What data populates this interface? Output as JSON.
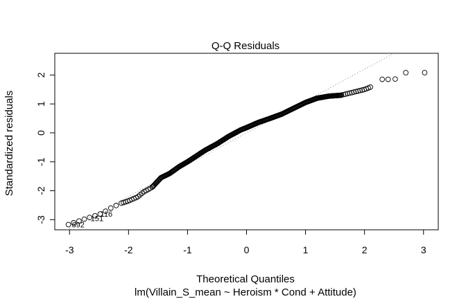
{
  "chart_data": {
    "type": "scatter",
    "title": "Q-Q Residuals",
    "xlabel": "Theoretical Quantiles",
    "ylabel": "Standardized residuals",
    "subtitle": "lm(Villain_S_mean ~ Heroism * Cond + Attitude)",
    "xlim": [
      -3.25,
      3.25
    ],
    "ylim": [
      -3.35,
      2.75
    ],
    "x_ticks": [
      -3,
      -2,
      -1,
      0,
      1,
      2,
      3
    ],
    "y_ticks": [
      -3,
      -2,
      -1,
      0,
      1,
      2
    ],
    "x_tick_labels": [
      "-3",
      "-2",
      "-1",
      "0",
      "1",
      "2",
      "3"
    ],
    "y_tick_labels": [
      "-3",
      "-2",
      "-1",
      "0",
      "1",
      "2"
    ],
    "reference_line": {
      "slope": 1.1,
      "intercept": 0.0,
      "style": "dotted",
      "color": "#808080"
    },
    "point_curve": [
      [
        -3.02,
        -3.17
      ],
      [
        -2.7,
        -2.95
      ],
      [
        -2.55,
        -2.85
      ],
      [
        -2.45,
        -2.78
      ],
      [
        -2.3,
        -2.6
      ],
      [
        -2.15,
        -2.45
      ],
      [
        -2.0,
        -2.35
      ],
      [
        -1.85,
        -2.22
      ],
      [
        -1.75,
        -2.05
      ],
      [
        -1.6,
        -1.88
      ],
      [
        -1.45,
        -1.55
      ],
      [
        -1.3,
        -1.4
      ],
      [
        -1.15,
        -1.18
      ],
      [
        -1.0,
        -1.0
      ],
      [
        -0.85,
        -0.8
      ],
      [
        -0.7,
        -0.6
      ],
      [
        -0.5,
        -0.38
      ],
      [
        -0.3,
        -0.12
      ],
      [
        -0.1,
        0.1
      ],
      [
        0.0,
        0.18
      ],
      [
        0.2,
        0.36
      ],
      [
        0.4,
        0.5
      ],
      [
        0.6,
        0.65
      ],
      [
        0.8,
        0.85
      ],
      [
        1.0,
        1.05
      ],
      [
        1.2,
        1.2
      ],
      [
        1.4,
        1.27
      ],
      [
        1.6,
        1.3
      ],
      [
        1.8,
        1.4
      ],
      [
        2.0,
        1.5
      ],
      [
        2.1,
        1.58
      ]
    ],
    "tail_points": [
      [
        2.3,
        1.85
      ],
      [
        2.4,
        1.85
      ],
      [
        2.52,
        1.86
      ],
      [
        2.7,
        2.08
      ],
      [
        3.02,
        2.08
      ]
    ],
    "point_count": 692,
    "labeled_points": [
      {
        "id": "692",
        "x": -3.02,
        "y": -3.17
      },
      {
        "id": "151",
        "x": -2.7,
        "y": -2.95
      },
      {
        "id": "116",
        "x": -2.55,
        "y": -2.85
      }
    ],
    "grid": false
  }
}
